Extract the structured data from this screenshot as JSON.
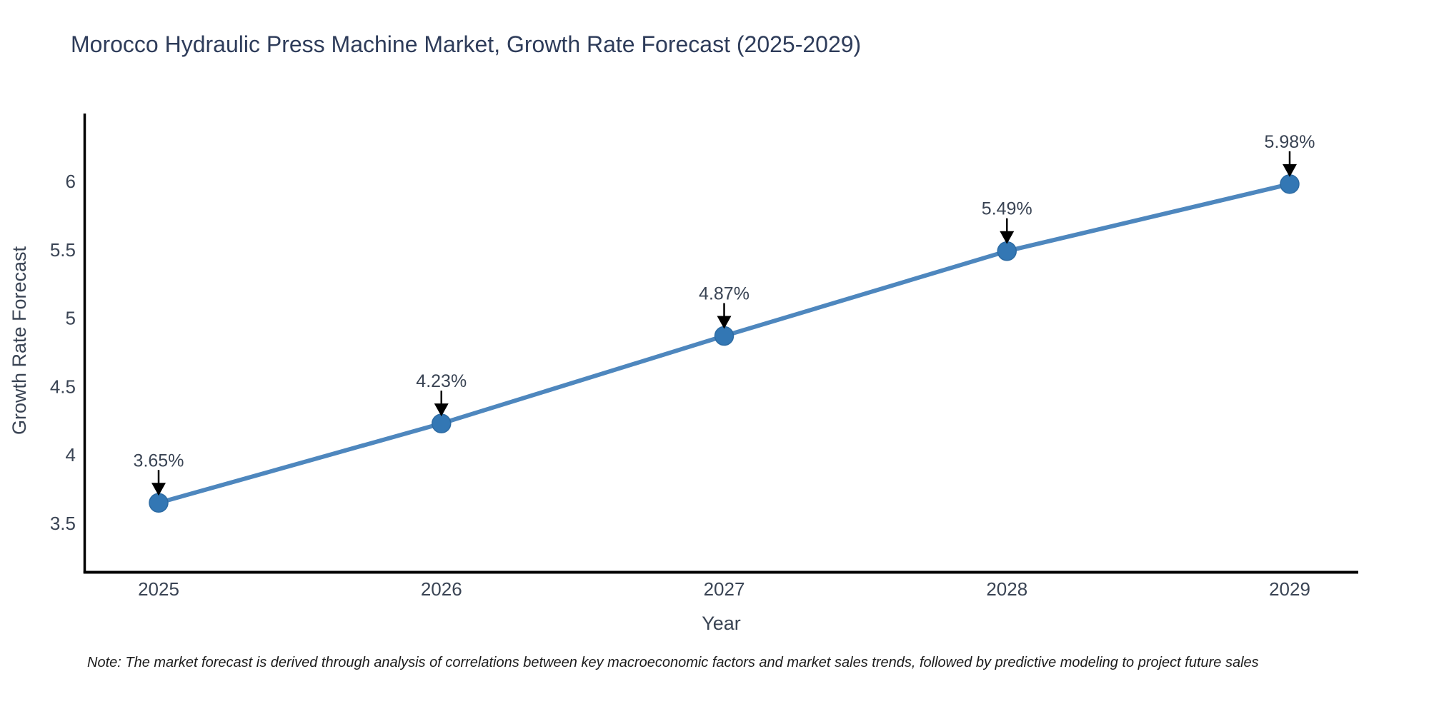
{
  "title": "Morocco Hydraulic Press Machine Market, Growth Rate Forecast (2025-2029)",
  "note": "Note: The market forecast is derived through analysis of correlations between key macroeconomic factors and market sales trends, followed by predictive modeling to project future sales",
  "chart_data": {
    "type": "line",
    "title": "Morocco Hydraulic Press Machine Market, Growth Rate Forecast (2025-2029)",
    "xlabel": "Year",
    "ylabel": "Growth Rate Forecast",
    "x": [
      2025,
      2026,
      2027,
      2028,
      2029
    ],
    "values": [
      3.65,
      4.23,
      4.87,
      5.49,
      5.98
    ],
    "point_labels": [
      "3.65%",
      "4.23%",
      "4.87%",
      "5.49%",
      "5.98%"
    ],
    "x_tick_labels": [
      "2025",
      "2026",
      "2027",
      "2028",
      "2029"
    ],
    "y_ticks": [
      3.5,
      4,
      4.5,
      5,
      5.5,
      6
    ],
    "y_tick_labels": [
      "3.5",
      "4",
      "4.5",
      "5",
      "5.5",
      "6"
    ],
    "xlim": [
      2024.73,
      2029.24
    ],
    "ylim": [
      3.13,
      6.5
    ],
    "grid": false,
    "legend": null,
    "annotation_style": "value label above each point with downward black arrow",
    "colors": {
      "line": "#4e87be",
      "marker_fill": "#3377b4",
      "marker_edge": "#2d6ba3",
      "arrow": "#000000",
      "axis": "#000000",
      "title_text": "#2e3c5a",
      "tick_text": "#3a4454",
      "note_text": "#1c1c1c",
      "background": "#ffffff"
    }
  }
}
